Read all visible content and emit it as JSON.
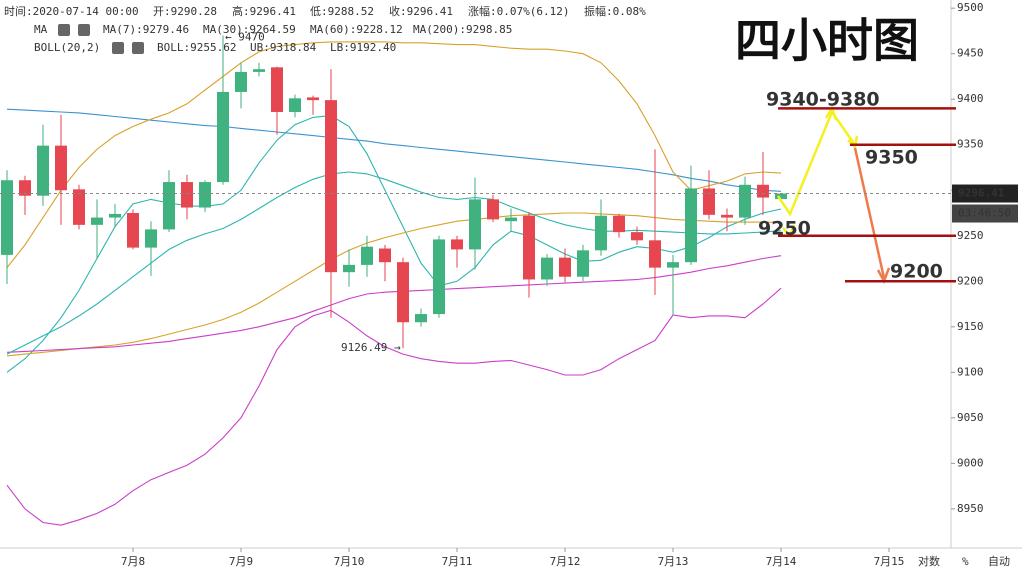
{
  "chart_data": {
    "type": "candlestick",
    "title": "四小时图",
    "info_bar": [
      "时间:2020-07-14 00:00",
      "开:9290.28",
      "高:9296.41",
      "低:9288.52",
      "收:9296.41",
      "涨幅:0.07%(6.12)",
      "振幅:0.08%"
    ],
    "indicator_groups": [
      "MA",
      "BOLL(20,2)"
    ],
    "categories": [
      null,
      null,
      null,
      null,
      null,
      null,
      null,
      "7月8",
      null,
      null,
      null,
      null,
      null,
      "7月9",
      null,
      null,
      null,
      null,
      null,
      "7月10",
      null,
      null,
      null,
      null,
      null,
      "7月11",
      null,
      null,
      null,
      null,
      null,
      "7月12",
      null,
      null,
      null,
      null,
      null,
      "7月13",
      null,
      null,
      null,
      null,
      null,
      "7月14",
      null,
      null,
      null,
      null,
      null,
      "7月15"
    ],
    "open": [
      9229,
      9311,
      9294,
      9349,
      9301,
      9262,
      9270,
      9275,
      9237,
      9257,
      9309,
      9281,
      9309,
      9408,
      9430,
      9435,
      9386,
      9402,
      9399,
      9210,
      9218,
      9236,
      9221,
      9155,
      9164,
      9246,
      9235,
      9290,
      9266,
      9272,
      9202,
      9226,
      9205,
      9234,
      9272,
      9254,
      9245,
      9215,
      9221,
      9302,
      9273,
      9270,
      9306,
      9290.28,
      null,
      null,
      null,
      null,
      null,
      null
    ],
    "high": [
      9322,
      9316,
      9372,
      9383,
      9306,
      9290,
      9285,
      9279,
      9266,
      9322,
      9317,
      9311,
      9470,
      9440,
      9440,
      9436,
      9405,
      9404,
      9433,
      9235,
      9250,
      9240,
      9226,
      9170,
      9250,
      9250,
      9314,
      9295,
      9280,
      9276,
      9230,
      9236,
      9240,
      9290,
      9274,
      9260,
      9345,
      9229,
      9327,
      9322,
      9280,
      9315,
      9342,
      9296.41,
      null,
      null,
      null,
      null,
      null,
      null
    ],
    "low": [
      9197,
      9273,
      9283,
      9262,
      9257,
      9224,
      9260,
      9235,
      9206,
      9254,
      9268,
      9276,
      9306,
      9390,
      9425,
      9361,
      9380,
      9383,
      9160,
      9194,
      9205,
      9200,
      9126.49,
      9150,
      9160,
      9215,
      9213,
      9265,
      9255,
      9182,
      9195,
      9199,
      9200,
      9228,
      9248,
      9240,
      9185,
      9163,
      9218,
      9268,
      9255,
      9262,
      9273,
      9288.52,
      null,
      null,
      null,
      null,
      null,
      null
    ],
    "close": [
      9311,
      9294,
      9349,
      9300,
      9262,
      9270,
      9274,
      9237,
      9257,
      9309,
      9281,
      9309,
      9408,
      9430,
      9433,
      9386,
      9401,
      9399,
      9210,
      9218,
      9238,
      9221,
      9155,
      9164,
      9246,
      9235,
      9290,
      9268,
      9270,
      9202,
      9226,
      9205,
      9234,
      9272,
      9254,
      9245,
      9215,
      9221,
      9302,
      9273,
      9270,
      9306,
      9292,
      9296.41,
      null,
      null,
      null,
      null,
      null,
      null
    ],
    "up_color": "#3fb27f",
    "down_color": "#e5464f",
    "lines": [
      {
        "name": "MA(7):9279.46",
        "color": "#2cb5b0",
        "values": [
          9100,
          9115,
          9135,
          9160,
          9190,
          9225,
          9260,
          9285,
          9290,
          9286,
          9283,
          9282,
          9285,
          9300,
          9330,
          9355,
          9372,
          9380,
          9382,
          9370,
          9340,
          9300,
          9260,
          9220,
          9195,
          9200,
          9215,
          9240,
          9255,
          9250,
          9240,
          9230,
          9222,
          9223,
          9232,
          9238,
          9236,
          9232,
          9238,
          9248,
          9260,
          9268,
          9275,
          9279.46,
          null,
          null,
          null,
          null,
          null,
          null
        ]
      },
      {
        "name": "MA(30):9264.59",
        "color": "#d9a12b",
        "values": [
          9118,
          9120,
          9122,
          9124,
          9126,
          9128,
          9130,
          9133,
          9137,
          9142,
          9147,
          9152,
          9158,
          9166,
          9176,
          9188,
          9200,
          9212,
          9224,
          9234,
          9242,
          9248,
          9253,
          9258,
          9262,
          9266,
          9268,
          9270,
          9272,
          9273,
          9274,
          9275,
          9275,
          9274,
          9273,
          9272,
          9270,
          9268,
          9267,
          9266,
          9265,
          9265,
          9265,
          9264.59,
          null,
          null,
          null,
          null,
          null,
          null
        ]
      },
      {
        "name": "MA(60):9228.12",
        "color": "#c93fc9",
        "values": [
          9122,
          9123,
          9124,
          9125,
          9126,
          9127,
          9128,
          9130,
          9132,
          9134,
          9137,
          9140,
          9143,
          9146,
          9150,
          9155,
          9160,
          9167,
          9174,
          9181,
          9186,
          9188,
          9189,
          9190,
          9191,
          9192,
          9193,
          9194,
          9195,
          9196,
          9197,
          9198,
          9199,
          9200,
          9201,
          9202,
          9204,
          9207,
          9210,
          9214,
          9217,
          9221,
          9225,
          9228.12,
          null,
          null,
          null,
          null,
          null,
          null
        ]
      },
      {
        "name": "MA(200):9298.85",
        "color": "#3b93cf",
        "values": [
          9389,
          9388,
          9387,
          9386,
          9385,
          9383,
          9381,
          9379,
          9377,
          9375,
          9373,
          9371,
          9370,
          9368,
          9366,
          9364,
          9362,
          9360,
          9358,
          9356,
          9354,
          9351,
          9349,
          9347,
          9345,
          9343,
          9341,
          9339,
          9337,
          9335,
          9333,
          9331,
          9329,
          9327,
          9325,
          9323,
          9320,
          9317,
          9313,
          9310,
          9306,
          9303,
          9300,
          9298.85,
          null,
          null,
          null,
          null,
          null,
          null
        ]
      },
      {
        "name": "BOLL:9255.62",
        "color": "#2cb5b0",
        "values": [
          9120,
          9130,
          9140,
          9150,
          9162,
          9175,
          9190,
          9205,
          9220,
          9235,
          9245,
          9252,
          9258,
          9268,
          9280,
          9292,
          9303,
          9312,
          9318,
          9320,
          9318,
          9312,
          9305,
          9298,
          9292,
          9290,
          9292,
          9290,
          9282,
          9275,
          9268,
          9262,
          9258,
          9255,
          9255,
          9256,
          9255,
          9254,
          9253,
          9252,
          9252,
          9253,
          9254,
          9255.62,
          null,
          null,
          null,
          null,
          null,
          null
        ]
      },
      {
        "name": "UB:9318.84",
        "color": "#d9a12b",
        "values": [
          9215,
          9240,
          9270,
          9300,
          9325,
          9345,
          9360,
          9370,
          9378,
          9385,
          9395,
          9410,
          9425,
          9440,
          9452,
          9458,
          9460,
          9462,
          9463,
          9463,
          9463,
          9463,
          9462,
          9462,
          9461,
          9460,
          9460,
          9458,
          9456,
          9455,
          9455,
          9453,
          9450,
          9440,
          9420,
          9395,
          9360,
          9320,
          9300,
          9305,
          9310,
          9318,
          9320,
          9318.84,
          null,
          null,
          null,
          null,
          null,
          null
        ]
      },
      {
        "name": "LB:9192.40",
        "color": "#c93fc9",
        "values": [
          8976,
          8950,
          8935,
          8932,
          8938,
          8945,
          8955,
          8970,
          8982,
          8990,
          8998,
          9010,
          9028,
          9050,
          9085,
          9125,
          9150,
          9162,
          9168,
          9155,
          9140,
          9128,
          9120,
          9115,
          9112,
          9110,
          9110,
          9112,
          9113,
          9108,
          9103,
          9097,
          9097,
          9103,
          9115,
          9125,
          9135,
          9163,
          9160,
          9162,
          9162,
          9160,
          9175,
          9192.4,
          null,
          null,
          null,
          null,
          null,
          null
        ]
      }
    ],
    "high_label": "← 9470",
    "low_label": "9126.49 →",
    "last_price": 9296.41,
    "countdown": "03:46:50",
    "levels": [
      {
        "label": "9340-9380",
        "value": 9390
      },
      {
        "label": "9350",
        "value": 9350
      },
      {
        "label": "9250",
        "value": 9250
      },
      {
        "label": "9200",
        "value": 9200
      }
    ],
    "level_line_color": "#a31010",
    "level_label_color": "#e0197d",
    "ylim": [
      8907,
      9509
    ],
    "yticks": [
      8950,
      9000,
      9050,
      9100,
      9150,
      9200,
      9250,
      9300,
      9350,
      9400,
      9450,
      9500
    ],
    "axis_controls": [
      "对数",
      "%",
      "自动"
    ]
  }
}
